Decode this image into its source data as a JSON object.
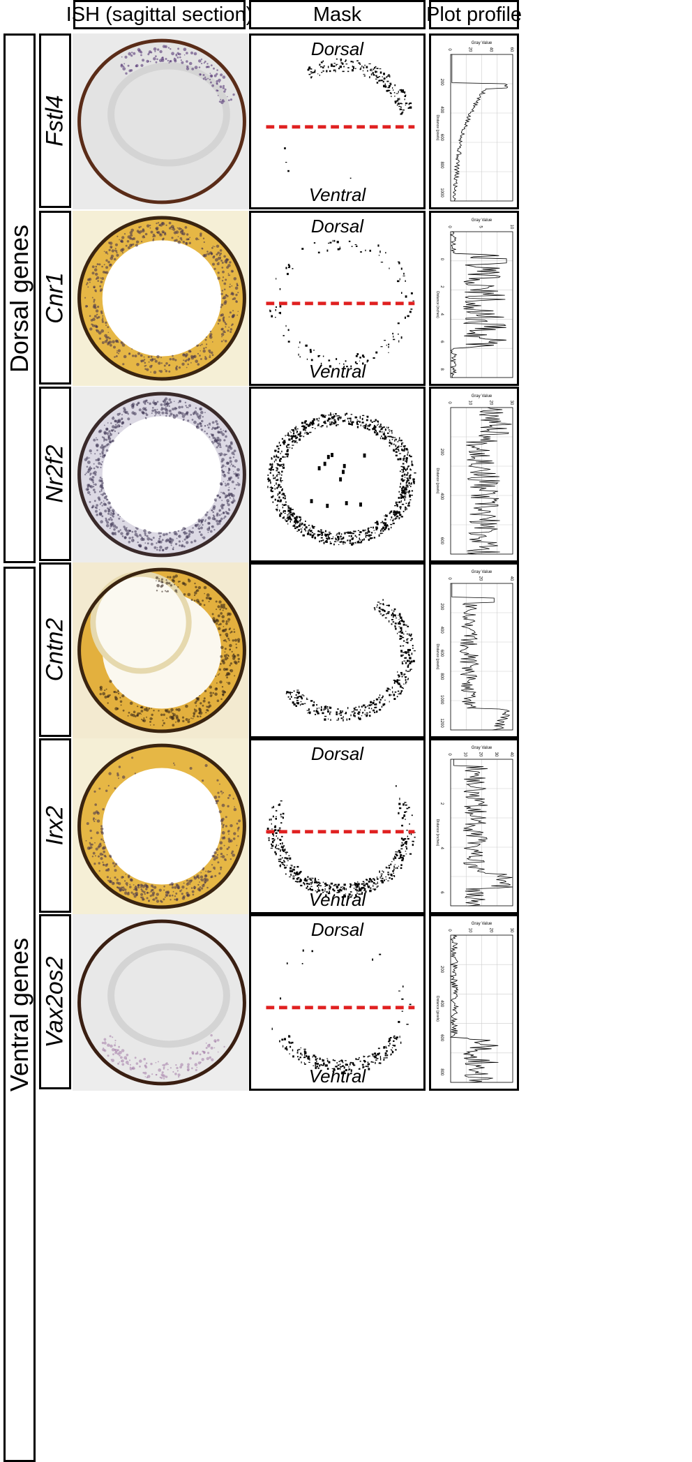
{
  "headers": {
    "ish": "ISH (sagittal section)",
    "mask": "Mask",
    "plot": "Plot profile"
  },
  "groups": {
    "dorsal": "Dorsal genes",
    "ventral": "Ventral genes"
  },
  "labels": {
    "dorsal": "Dorsal",
    "ventral": "Ventral"
  },
  "rows": [
    {
      "gene": "Fstl4",
      "theme": "purple",
      "expr": "dorsal",
      "plot": {
        "title": "Gray Value",
        "xlabel": "Distance (pixels)",
        "vticks": [
          "0",
          "20",
          "40",
          "60"
        ],
        "hticks": [
          "200",
          "400",
          "600",
          "800",
          "1000"
        ]
      }
    },
    {
      "gene": "Cnr1",
      "theme": "yellow",
      "expr": "ring",
      "plot": {
        "title": "Gray Value",
        "xlabel": "Distance (inches)",
        "vticks": [
          "0",
          "5",
          "10"
        ],
        "hticks": [
          "0",
          "2",
          "4",
          "6",
          "8"
        ]
      }
    },
    {
      "gene": "Nr2f2",
      "theme": "gray",
      "expr": "ringdense",
      "plot": {
        "title": "Gray Value",
        "xlabel": "Distance (pixels)",
        "vticks": [
          "0",
          "10",
          "20",
          "30"
        ],
        "hticks": [
          "200",
          "400",
          "600"
        ]
      }
    },
    {
      "gene": "Cntn2",
      "theme": "yellowlens",
      "expr": "ventralarc",
      "plot": {
        "title": "Gray Value",
        "xlabel": "Distance (pixels)",
        "vticks": [
          "0",
          "20",
          "40"
        ],
        "hticks": [
          "200",
          "400",
          "600",
          "800",
          "1000",
          "1200"
        ]
      }
    },
    {
      "gene": "Irx2",
      "theme": "yellow",
      "expr": "ringventral",
      "plot": {
        "title": "Gray Value",
        "xlabel": "Distance (inches)",
        "vticks": [
          "0",
          "10",
          "20",
          "30",
          "40"
        ],
        "hticks": [
          "2",
          "4",
          "6"
        ]
      }
    },
    {
      "gene": "Vax2os2",
      "theme": "pink",
      "expr": "ventral",
      "plot": {
        "title": "Gray Value",
        "xlabel": "Distance (pixels)",
        "vticks": [
          "0",
          "10",
          "20",
          "30"
        ],
        "hticks": [
          "200",
          "400",
          "600",
          "800"
        ]
      }
    }
  ],
  "chart_data": [
    {
      "type": "line",
      "title": "Gray Value",
      "xlabel": "Distance (pixels)",
      "xlim": [
        0,
        80
      ],
      "ylim": [
        0,
        1000
      ],
      "description_of_shape": "near zero until ~200 px, sharp spike to ~60, then decays toward 0 by ~700 px"
    },
    {
      "type": "line",
      "title": "Gray Value",
      "xlabel": "Distance (inches)",
      "xlim": [
        0,
        10
      ],
      "ylim": [
        0,
        9
      ],
      "description_of_shape": "noisy high values between 2 and 6 inches, peak ~10 near 2 inches"
    },
    {
      "type": "line",
      "title": "Gray Value",
      "xlabel": "Distance (pixels)",
      "xlim": [
        0,
        35
      ],
      "ylim": [
        0,
        700
      ],
      "description_of_shape": "broad noisy profile, peaks ~30 near 120 px and ~25 near 600 px"
    },
    {
      "type": "line",
      "title": "Gray Value",
      "xlabel": "Distance (pixels)",
      "xlim": [
        0,
        45
      ],
      "ylim": [
        0,
        1300
      ],
      "description_of_shape": "low then rising to peak ~40 near 1200 px"
    },
    {
      "type": "line",
      "title": "Gray Value",
      "xlabel": "Distance (inches)",
      "xlim": [
        0,
        45
      ],
      "ylim": [
        0,
        7
      ],
      "description_of_shape": "variable ~15-25, peak ~40 near 6 inches"
    },
    {
      "type": "line",
      "title": "Gray Value",
      "xlabel": "Distance (pixels)",
      "xlim": [
        0,
        35
      ],
      "ylim": [
        0,
        900
      ],
      "description_of_shape": "near zero until ~650 px, then peaks ~30 near 850 px"
    }
  ]
}
